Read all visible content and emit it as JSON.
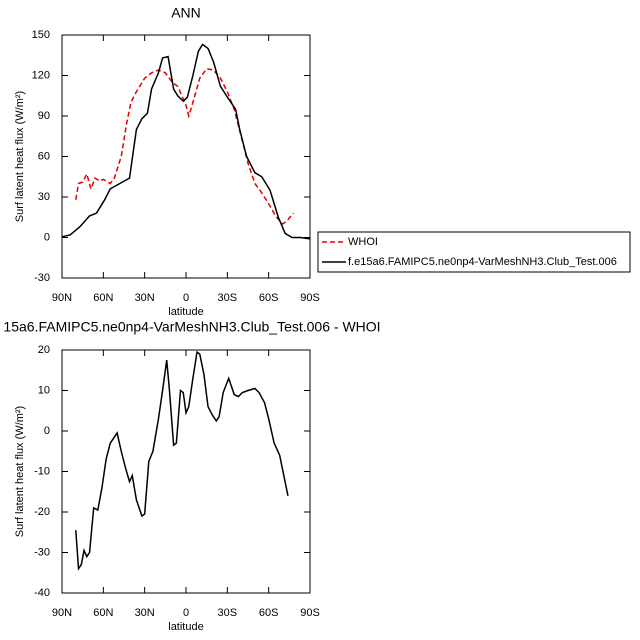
{
  "chart_data": [
    {
      "type": "line",
      "title": "ANN",
      "xlabel": "latitude",
      "ylabel": "Surf latent heat flux (W/m²)",
      "xlim": [
        90,
        -90
      ],
      "xticks": [
        {
          "value": 90,
          "label": "90N"
        },
        {
          "value": 60,
          "label": "60N"
        },
        {
          "value": 30,
          "label": "30N"
        },
        0,
        {
          "value": -30,
          "label": "30S"
        },
        {
          "value": -60,
          "label": "60S"
        },
        {
          "value": -90,
          "label": "90S"
        }
      ],
      "ylim": [
        -30,
        150
      ],
      "yticks": [
        150,
        120,
        90,
        60,
        30,
        0,
        -30
      ],
      "legend": "right",
      "series": [
        {
          "name": "WHOI",
          "color": "#e00000",
          "linestyle": "dashed",
          "x": [
            80,
            78,
            75,
            72,
            69,
            66,
            63,
            60,
            55,
            52,
            47,
            43,
            40,
            36,
            30,
            25,
            20,
            15,
            10,
            6,
            3,
            0,
            -2,
            -5,
            -10,
            -15,
            -20,
            -25,
            -30,
            -35,
            -40,
            -45,
            -50,
            -55,
            -60,
            -65,
            -70,
            -73,
            -78
          ],
          "values": [
            28,
            40,
            41,
            47,
            36,
            44,
            42,
            43,
            40,
            44,
            60,
            85,
            100,
            108,
            118,
            122,
            124,
            122,
            115,
            112,
            105,
            98,
            90,
            100,
            118,
            125,
            124,
            118,
            108,
            95,
            75,
            55,
            40,
            33,
            25,
            16,
            10,
            12,
            18
          ]
        },
        {
          "name": "f.e15a6.FAMIPC5.ne0np4-VarMeshNH3.Club_Test.006",
          "color": "#000000",
          "linestyle": "solid",
          "x": [
            90,
            84,
            77,
            70,
            65,
            59,
            55,
            48,
            41,
            36,
            32,
            28,
            25,
            20,
            17,
            13,
            9,
            6,
            2,
            -1,
            -5,
            -9,
            -12,
            -16,
            -20,
            -25,
            -30,
            -36,
            -39,
            -44,
            -50,
            -55,
            -61,
            -67,
            -72,
            -77,
            -83,
            -90
          ],
          "values": [
            0.5,
            2,
            8,
            16,
            18,
            28,
            36,
            40,
            44,
            80,
            88,
            92,
            110,
            122,
            133,
            134,
            110,
            105,
            101,
            104,
            120,
            138,
            143,
            140,
            130,
            112,
            104,
            95,
            80,
            60,
            48,
            45,
            35,
            15,
            3,
            0,
            0,
            -1
          ]
        }
      ]
    },
    {
      "type": "line",
      "title": "15a6.FAMIPC5.ne0np4-VarMeshNH3.Club_Test.006 - WHOI",
      "xlabel": "latitude",
      "ylabel": "Surf latent heat flux (W/m²)",
      "xlim": [
        90,
        -90
      ],
      "xticks": [
        {
          "value": 90,
          "label": "90N"
        },
        {
          "value": 60,
          "label": "60N"
        },
        {
          "value": 30,
          "label": "30N"
        },
        0,
        {
          "value": -30,
          "label": "30S"
        },
        {
          "value": -60,
          "label": "60S"
        },
        {
          "value": -90,
          "label": "90S"
        }
      ],
      "ylim": [
        -40,
        20
      ],
      "yticks": [
        20,
        10,
        0,
        -10,
        -20,
        -30,
        -40
      ],
      "series": [
        {
          "color": "#000000",
          "linestyle": "solid",
          "x": [
            80,
            78,
            76,
            74,
            72,
            70,
            67,
            64,
            61,
            58,
            55,
            52,
            50,
            47,
            44,
            41,
            39,
            36,
            32,
            30,
            27,
            24,
            20,
            17,
            14,
            12,
            9,
            7,
            4,
            2,
            0,
            -2,
            -5,
            -8,
            -10,
            -13,
            -16,
            -19,
            -22,
            -24,
            -27,
            -31,
            -35,
            -38,
            -41,
            -45,
            -50,
            -53,
            -57,
            -60,
            -64,
            -68,
            -74
          ],
          "values": [
            -24.5,
            -34,
            -33,
            -29.5,
            -31,
            -30,
            -19,
            -19.5,
            -14,
            -7,
            -3,
            -1.5,
            -0.5,
            -5,
            -9,
            -12.5,
            -11,
            -17,
            -21,
            -20.5,
            -7.5,
            -5,
            3,
            10,
            17.5,
            10,
            -3.5,
            -3,
            10,
            9.5,
            4.5,
            6,
            13,
            19.5,
            19,
            14,
            6,
            4,
            2.5,
            3.5,
            9.5,
            13,
            9,
            8.5,
            9.5,
            10,
            10.5,
            9.5,
            7,
            3,
            -3,
            -6,
            -16
          ]
        }
      ]
    }
  ]
}
